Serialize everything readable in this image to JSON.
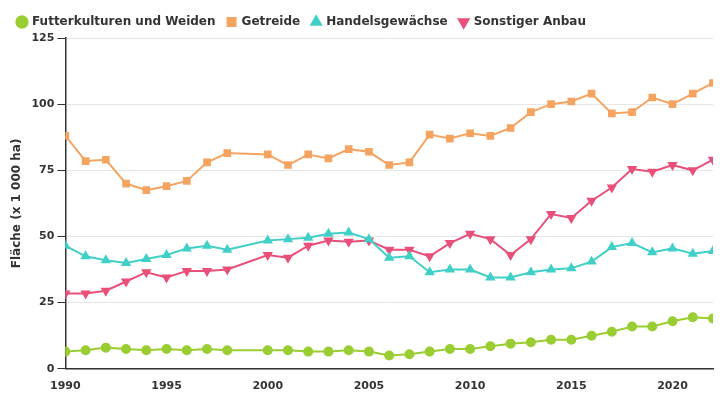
{
  "chart_data": {
    "type": "line",
    "y_label": "Fläche (x 1 000 ha)",
    "x": [
      1990,
      1991,
      1992,
      1993,
      1994,
      1995,
      1996,
      1997,
      1998,
      2000,
      2001,
      2002,
      2003,
      2004,
      2005,
      2006,
      2007,
      2008,
      2009,
      2010,
      2011,
      2012,
      2013,
      2014,
      2015,
      2016,
      2017,
      2018,
      2019,
      2020,
      2021,
      2022
    ],
    "xlim": [
      1990,
      2022
    ],
    "xticks": [
      1990,
      1995,
      2000,
      2005,
      2010,
      2015,
      2020
    ],
    "ylim": [
      0,
      125
    ],
    "yticks": [
      0,
      25,
      50,
      75,
      100,
      125
    ],
    "grid": true,
    "legend": "top",
    "series": [
      {
        "name": "Futterkulturen und Weiden",
        "color": "#9acd32",
        "marker": "circle",
        "values": [
          6.5,
          7,
          8,
          7.5,
          7,
          7.5,
          7,
          7.5,
          7,
          7,
          7,
          6.5,
          6.5,
          7,
          6.5,
          5,
          5.5,
          6.5,
          7.5,
          7.5,
          8.5,
          9.5,
          10,
          11,
          11,
          12.5,
          14,
          16,
          16,
          18,
          19.5,
          19
        ]
      },
      {
        "name": "Getreide",
        "color": "#f4a460",
        "marker": "square",
        "values": [
          88,
          78.5,
          79,
          70,
          67.5,
          69,
          71,
          78,
          81.5,
          81,
          77,
          81,
          79.5,
          83,
          82,
          77,
          78,
          88.5,
          87,
          89,
          88,
          91,
          97,
          100,
          101,
          104,
          96.5,
          97,
          102.5,
          100,
          104,
          108
        ]
      },
      {
        "name": "Handelsgewächse",
        "color": "#40d0c8",
        "marker": "triangle",
        "values": [
          46.5,
          42.5,
          41,
          40,
          41.5,
          43,
          45.5,
          46.5,
          45,
          48.5,
          49,
          49.5,
          51,
          51.5,
          49,
          42,
          42.5,
          36.5,
          37.5,
          37.5,
          34.5,
          34.5,
          36.5,
          37.5,
          38,
          40.5,
          46,
          47.5,
          44,
          45.5,
          43.5,
          44.5
        ]
      },
      {
        "name": "Sonstiger Anbau",
        "color": "#e8507a",
        "marker": "triangle_down",
        "values": [
          28.5,
          28.5,
          29.5,
          33,
          36.5,
          34.5,
          37,
          37,
          37.5,
          43,
          42,
          46.5,
          48.5,
          48,
          48.5,
          45,
          45,
          42.5,
          47.5,
          51,
          49,
          43,
          49,
          58.5,
          57,
          63.5,
          68.5,
          75.5,
          74.5,
          77,
          75,
          79
        ]
      }
    ]
  }
}
